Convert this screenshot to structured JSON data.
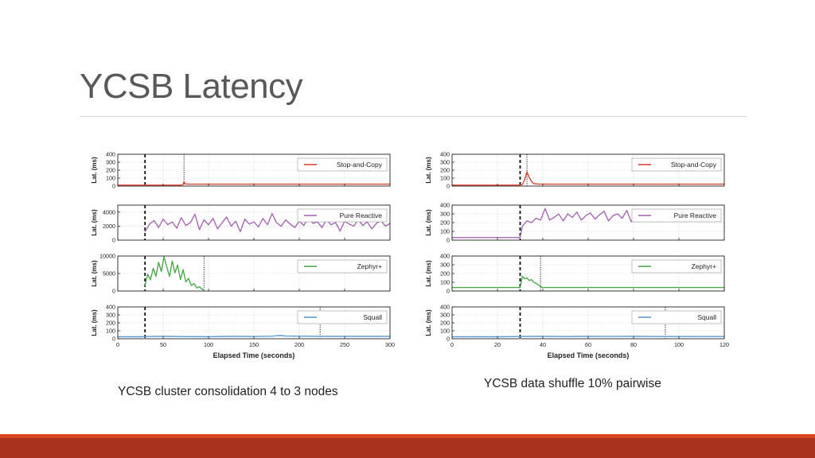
{
  "slide": {
    "title": "YCSB Latency",
    "caption_left": "YCSB cluster consolidation 4 to 3 nodes",
    "caption_right": "YCSB data shuffle 10% pairwise",
    "footer_color": "#a9321e"
  },
  "chart_data": [
    {
      "type": "line",
      "xlabel": "Elapsed Time (seconds)",
      "xlim": [
        0,
        300
      ],
      "xticks": [
        0,
        50,
        100,
        150,
        200,
        250,
        300
      ],
      "panels": [
        {
          "series_name": "Stop-and-Copy",
          "color": "#d9473a",
          "ylabel": "Lat. (ms)",
          "ylim": [
            0,
            400
          ],
          "yticks": [
            0,
            100,
            200,
            300,
            400
          ],
          "vlines": [
            30,
            73
          ],
          "x": [
            0,
            30,
            70,
            72,
            73,
            74,
            76,
            80,
            100,
            150,
            200,
            250,
            300
          ],
          "y": [
            12,
            12,
            12,
            20,
            55,
            30,
            24,
            24,
            24,
            24,
            24,
            24,
            24
          ]
        },
        {
          "series_name": "Pure Reactive",
          "color": "#a668b4",
          "ylabel": "Lat. (ms)",
          "ylim": [
            0,
            5000
          ],
          "yticks": [
            0,
            2000,
            4000
          ],
          "vlines": [
            30
          ],
          "x": [
            30,
            35,
            40,
            45,
            50,
            55,
            60,
            65,
            70,
            75,
            80,
            85,
            90,
            95,
            100,
            105,
            110,
            115,
            120,
            125,
            130,
            135,
            140,
            145,
            150,
            155,
            160,
            165,
            170,
            175,
            180,
            185,
            190,
            195,
            200,
            205,
            210,
            215,
            220,
            225,
            230,
            235,
            240,
            245,
            250,
            255,
            260,
            265,
            270,
            275,
            280,
            285,
            290,
            295,
            300
          ],
          "y": [
            1200,
            2300,
            2800,
            1800,
            3000,
            2200,
            2600,
            1700,
            3200,
            2100,
            2500,
            3700,
            1500,
            2900,
            2200,
            3100,
            1600,
            2500,
            3300,
            2000,
            2700,
            1200,
            3000,
            2300,
            2600,
            1900,
            3100,
            2200,
            3800,
            2500,
            2000,
            2900,
            2300,
            1800,
            2700,
            2100,
            3200,
            2400,
            2600,
            1800,
            2900,
            2200,
            2500,
            1300,
            2700,
            2300,
            2000,
            2900,
            2100,
            2600,
            1600,
            2400,
            2800,
            2000,
            2400
          ]
        },
        {
          "series_name": "Zephyr+",
          "color": "#4caa4c",
          "ylabel": "Lat. (ms)",
          "ylim": [
            0,
            10000
          ],
          "yticks": [
            0,
            5000,
            10000
          ],
          "vlines": [
            30,
            95
          ],
          "x": [
            30,
            33,
            36,
            39,
            42,
            45,
            48,
            51,
            54,
            57,
            60,
            63,
            66,
            69,
            72,
            75,
            78,
            81,
            84,
            87,
            90,
            93,
            95
          ],
          "y": [
            1500,
            4800,
            3200,
            6500,
            4200,
            8200,
            5600,
            9800,
            6800,
            4200,
            8600,
            5200,
            7400,
            3300,
            6100,
            2600,
            3600,
            1600,
            2100,
            900,
            1200,
            500,
            300
          ]
        },
        {
          "series_name": "Squall",
          "color": "#5b9bd5",
          "ylabel": "Lat. (ms)",
          "ylim": [
            0,
            400
          ],
          "yticks": [
            0,
            100,
            200,
            300,
            400
          ],
          "vlines": [
            30,
            223
          ],
          "x": [
            0,
            25,
            30,
            50,
            75,
            100,
            125,
            150,
            170,
            175,
            180,
            185,
            200,
            223,
            250,
            275,
            300
          ],
          "y": [
            25,
            25,
            28,
            30,
            27,
            26,
            30,
            28,
            32,
            38,
            40,
            34,
            32,
            30,
            30,
            30,
            30
          ]
        }
      ]
    },
    {
      "type": "line",
      "xlabel": "Elapsed Time (seconds)",
      "xlim": [
        0,
        120
      ],
      "xticks": [
        0,
        20,
        40,
        60,
        80,
        100,
        120
      ],
      "panels": [
        {
          "series_name": "Stop-and-Copy",
          "color": "#d9473a",
          "ylabel": "Lat. (ms)",
          "ylim": [
            0,
            400
          ],
          "yticks": [
            0,
            100,
            200,
            300,
            400
          ],
          "vlines": [
            30,
            33
          ],
          "x": [
            0,
            30,
            31,
            32,
            33,
            34,
            35,
            36,
            38,
            60,
            90,
            120
          ],
          "y": [
            12,
            12,
            20,
            80,
            180,
            110,
            60,
            30,
            24,
            24,
            24,
            24
          ]
        },
        {
          "series_name": "Pure Reactive",
          "color": "#a668b4",
          "ylabel": "Lat. (ms)",
          "ylim": [
            0,
            400
          ],
          "yticks": [
            0,
            100,
            200,
            300,
            400
          ],
          "vlines": [
            30
          ],
          "x": [
            0,
            30,
            31,
            33,
            35,
            37,
            39,
            41,
            43,
            45,
            47,
            49,
            51,
            53,
            55,
            57,
            59,
            61,
            63,
            65,
            67,
            69,
            71,
            73,
            75,
            77,
            79,
            81,
            83,
            85,
            87,
            89,
            91,
            93,
            95
          ],
          "y": [
            30,
            30,
            160,
            220,
            200,
            250,
            230,
            360,
            230,
            260,
            300,
            220,
            300,
            260,
            320,
            230,
            280,
            310,
            240,
            290,
            330,
            220,
            280,
            300,
            250,
            340,
            210,
            290,
            260,
            310,
            220,
            280,
            250,
            300,
            260
          ]
        },
        {
          "series_name": "Zephyr+",
          "color": "#4caa4c",
          "ylabel": "Lat. (ms)",
          "ylim": [
            0,
            400
          ],
          "yticks": [
            0,
            100,
            200,
            300,
            400
          ],
          "vlines": [
            30,
            39
          ],
          "x": [
            0,
            30,
            31,
            32,
            33,
            34,
            35,
            36,
            37,
            38,
            39,
            40,
            60,
            90,
            120
          ],
          "y": [
            40,
            40,
            170,
            140,
            150,
            120,
            130,
            100,
            90,
            70,
            50,
            40,
            40,
            40,
            40
          ]
        },
        {
          "series_name": "Squall",
          "color": "#5b9bd5",
          "ylabel": "Lat. (ms)",
          "ylim": [
            0,
            400
          ],
          "yticks": [
            0,
            100,
            200,
            300,
            400
          ],
          "vlines": [
            30,
            94
          ],
          "x": [
            0,
            20,
            30,
            40,
            50,
            60,
            70,
            80,
            94,
            100,
            110,
            120
          ],
          "y": [
            25,
            25,
            28,
            30,
            28,
            30,
            29,
            30,
            28,
            28,
            28,
            28
          ]
        }
      ]
    }
  ]
}
